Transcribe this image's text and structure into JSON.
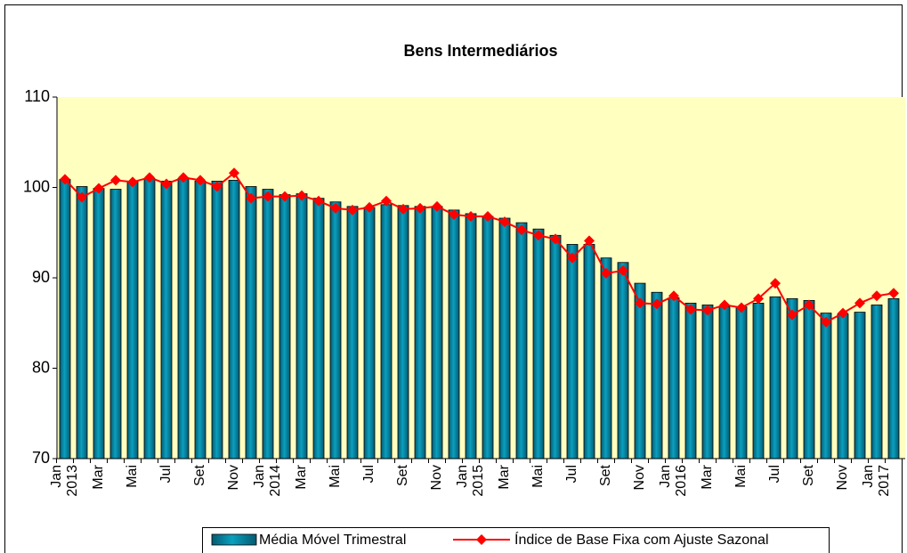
{
  "chart_data": {
    "type": "bar_line",
    "title": "Bens Intermediários",
    "categories": [
      "Jan\n2013",
      null,
      "Mar",
      null,
      "Mai",
      null,
      "Jul",
      null,
      "Set",
      null,
      "Nov",
      null,
      "Jan\n2014",
      null,
      "Mar",
      null,
      "Mai",
      null,
      "Jul",
      null,
      "Set",
      null,
      "Nov",
      null,
      "Jan\n2015",
      null,
      "Mar",
      null,
      "Mai",
      null,
      "Jul",
      null,
      "Set",
      null,
      "Nov",
      null,
      "Jan\n2016",
      null,
      "Mar",
      null,
      "Mai",
      null,
      "Jul",
      null,
      "Set",
      null,
      "Nov",
      null,
      "Jan\n2017",
      null
    ],
    "series": [
      {
        "name": "Média Móvel Trimestral",
        "type": "bar",
        "color": "#0aa0bf",
        "values": [
          100.9,
          100.1,
          99.9,
          99.8,
          100.7,
          101.0,
          100.7,
          101.0,
          100.7,
          100.7,
          100.8,
          100.1,
          99.8,
          99.2,
          99.3,
          98.8,
          98.4,
          97.9,
          97.8,
          98.1,
          98.0,
          97.9,
          97.9,
          97.5,
          97.1,
          96.8,
          96.6,
          96.1,
          95.4,
          94.7,
          93.7,
          93.7,
          92.2,
          91.7,
          89.4,
          88.4,
          87.8,
          87.2,
          87.0,
          86.8,
          86.8,
          87.2,
          87.9,
          87.7,
          87.5,
          86.1,
          86.0,
          86.2,
          87.0,
          87.7
        ]
      },
      {
        "name": "Índice de Base Fixa com Ajuste Sazonal",
        "type": "line",
        "color": "#ff0000",
        "values": [
          100.9,
          98.9,
          99.9,
          100.8,
          100.6,
          101.1,
          100.4,
          101.1,
          100.8,
          100.1,
          101.6,
          98.8,
          99.0,
          99.0,
          99.1,
          98.5,
          97.7,
          97.5,
          97.8,
          98.5,
          97.6,
          97.7,
          97.9,
          97.0,
          96.8,
          96.8,
          96.2,
          95.3,
          94.7,
          94.3,
          92.2,
          94.1,
          90.5,
          90.8,
          87.2,
          87.1,
          88.0,
          86.5,
          86.4,
          87.0,
          86.7,
          87.7,
          89.4,
          85.9,
          87.0,
          85.1,
          86.1,
          87.2,
          88.0,
          88.3
        ]
      }
    ],
    "ylim": [
      70,
      110
    ],
    "yticks": [
      70,
      80,
      90,
      100,
      110
    ],
    "plot_background": "#ffffc0",
    "legend": "bottom"
  }
}
